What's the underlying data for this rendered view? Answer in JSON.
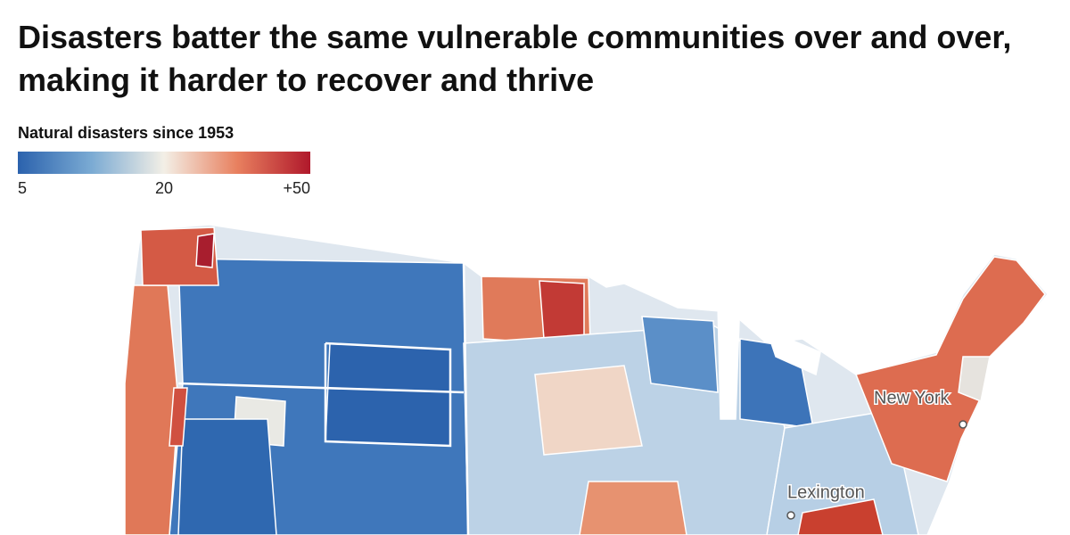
{
  "title": "Disasters batter the same vulnerable communities over and over, making it harder to recover and thrive",
  "legend": {
    "title": "Natural disasters since 1953",
    "colors": [
      "#2b62ad",
      "#7aaad3",
      "#f3efe6",
      "#e8805f",
      "#b0182b"
    ],
    "ticks": [
      5,
      20,
      {
        "value": 50,
        "label": "+50"
      }
    ]
  },
  "map": {
    "cities": [
      {
        "name": "New York"
      },
      {
        "name": "Lexington"
      }
    ]
  }
}
